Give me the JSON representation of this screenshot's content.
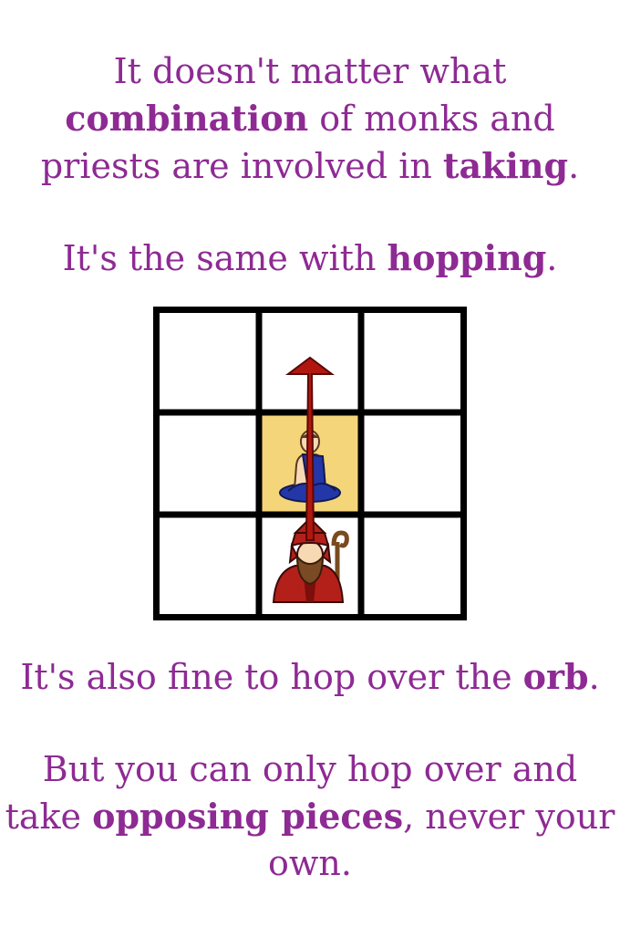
{
  "paragraphs": [
    {
      "id": "p1",
      "segments": [
        {
          "text": "It doesn't matter what ",
          "bold": false
        },
        {
          "text": "combination",
          "bold": true
        },
        {
          "text": " of monks and priests are involved in ",
          "bold": false
        },
        {
          "text": "taking",
          "bold": true
        },
        {
          "text": ".",
          "bold": false
        }
      ]
    },
    {
      "id": "p2",
      "segments": [
        {
          "text": "It's the same with ",
          "bold": false
        },
        {
          "text": "hopping",
          "bold": true
        },
        {
          "text": ".",
          "bold": false
        }
      ]
    },
    {
      "id": "p3",
      "segments": [
        {
          "text": "It's also fine to hop over the ",
          "bold": false
        },
        {
          "text": "orb",
          "bold": true
        },
        {
          "text": ".",
          "bold": false
        }
      ]
    },
    {
      "id": "p4",
      "segments": [
        {
          "text": "But you can only hop over and take ",
          "bold": false
        },
        {
          "text": "opposing pieces",
          "bold": true
        },
        {
          "text": ", never your own.",
          "bold": false
        }
      ]
    }
  ],
  "board": {
    "rows": 3,
    "cols": 3,
    "highlight_cell": {
      "row": 1,
      "col": 1
    },
    "pieces": [
      {
        "type": "monk",
        "color": "blue",
        "row": 1,
        "col": 1
      },
      {
        "type": "priest",
        "color": "red",
        "row": 2,
        "col": 1
      }
    ],
    "move_arrow": {
      "from": {
        "row": 2,
        "col": 1
      },
      "to": {
        "row": 0,
        "col": 1
      }
    },
    "colors": {
      "text": "#8e2a94",
      "grid": "#000000",
      "highlight": "#f4d57a",
      "arrow": "#b0170f",
      "monk": "#2437a8",
      "priest": "#b3201a"
    }
  }
}
